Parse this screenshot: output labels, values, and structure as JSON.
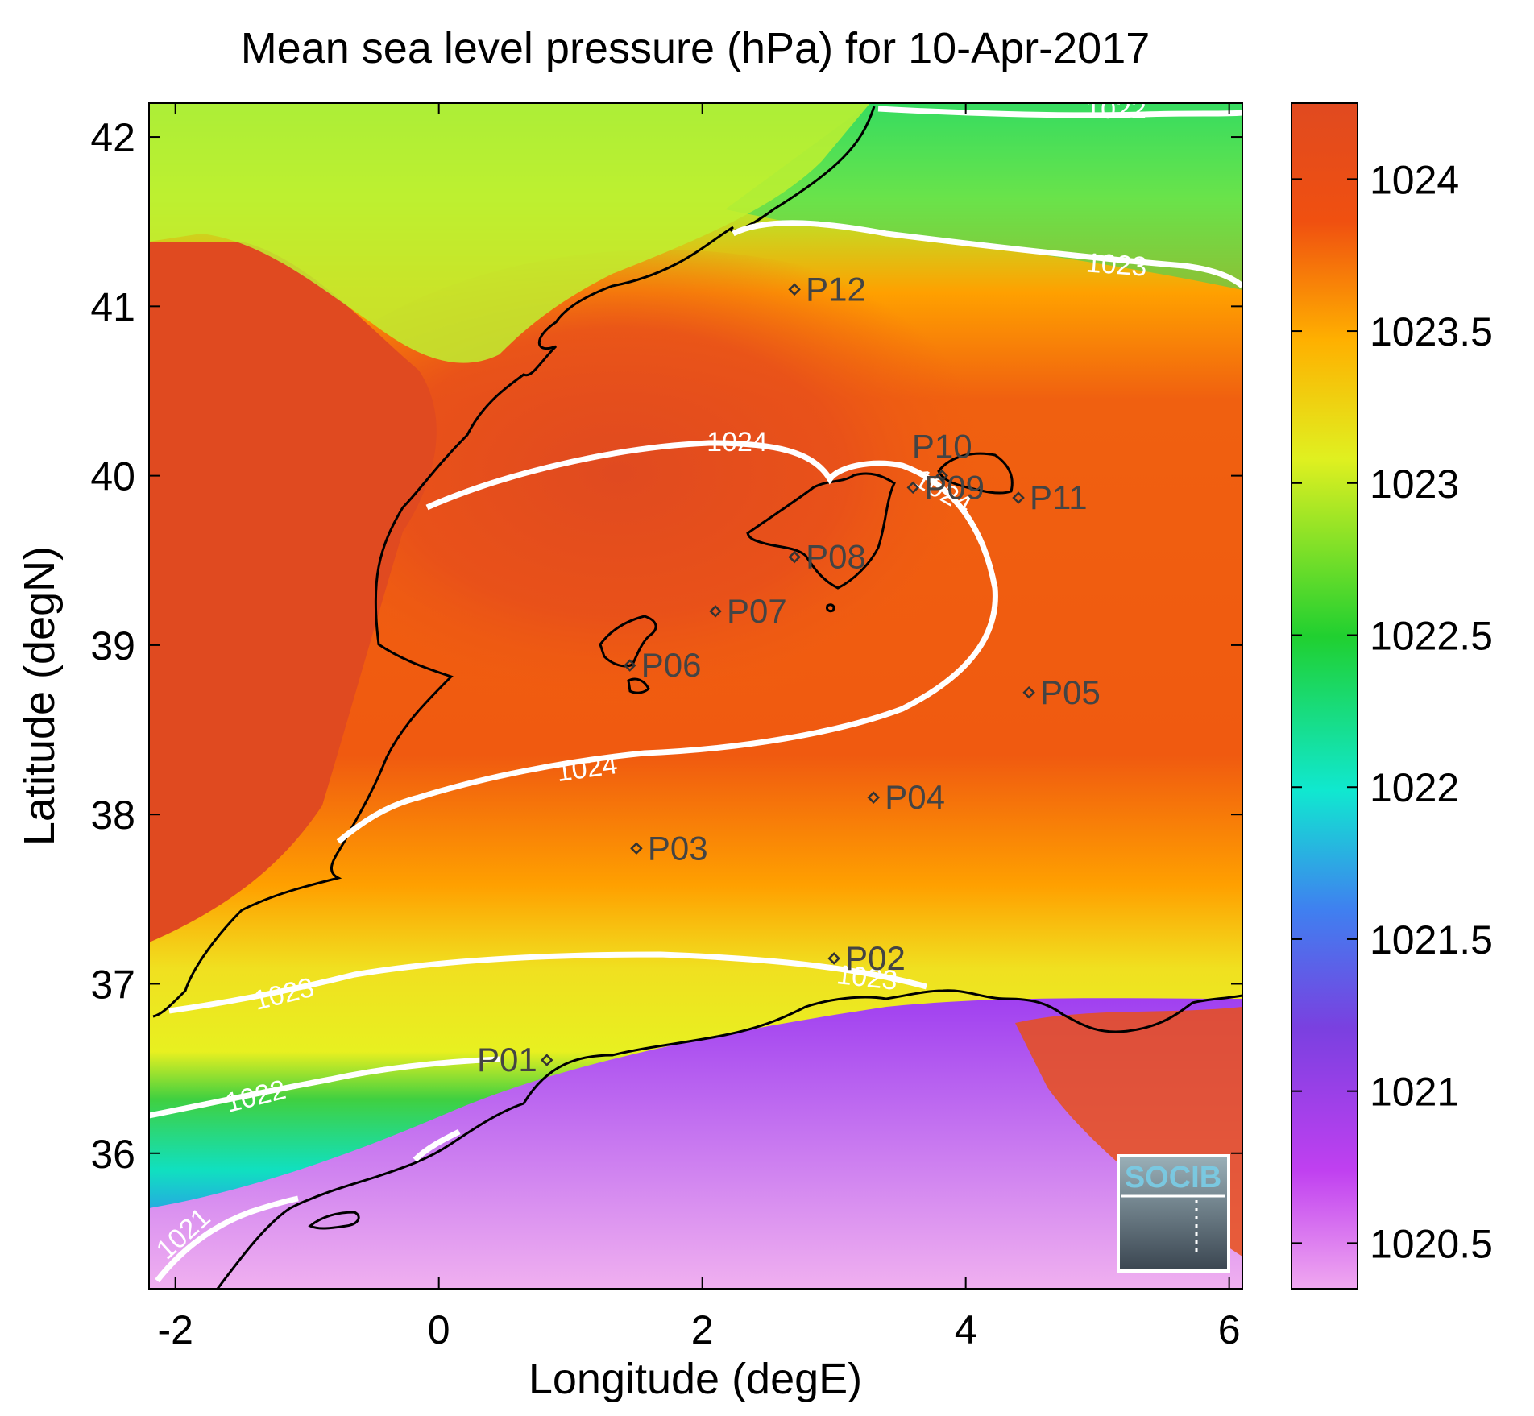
{
  "title": "Mean sea level pressure (hPa) for 10-Apr-2017",
  "axes": {
    "xlabel": "Longitude (degE)",
    "ylabel": "Latitude (degN)",
    "xlim": [
      -2.2,
      6.1
    ],
    "ylim": [
      35.2,
      42.2
    ],
    "xticks": [
      -2,
      0,
      2,
      4,
      6
    ],
    "yticks": [
      36,
      37,
      38,
      39,
      40,
      41,
      42
    ]
  },
  "colorbar": {
    "range": [
      1020.35,
      1024.25
    ],
    "ticks": [
      1024,
      1023.5,
      1023,
      1022.5,
      1022,
      1021.5,
      1021,
      1020.5
    ],
    "colors": [
      "#f0a8f0",
      "#c040f0",
      "#7a40e0",
      "#3f80f0",
      "#10e8d0",
      "#20d030",
      "#e0f020",
      "#ffb000",
      "#f05010",
      "#e04a20"
    ]
  },
  "contours": [
    {
      "label": "1024",
      "level": 1024
    },
    {
      "label": "1023",
      "level": 1023
    },
    {
      "label": "1022",
      "level": 1022
    },
    {
      "label": "1021",
      "level": 1021
    }
  ],
  "stations": [
    {
      "label": "P01",
      "lon": 0.82,
      "lat": 36.55
    },
    {
      "label": "P02",
      "lon": 3.0,
      "lat": 37.15
    },
    {
      "label": "P03",
      "lon": 1.5,
      "lat": 37.8
    },
    {
      "label": "P04",
      "lon": 3.3,
      "lat": 38.1
    },
    {
      "label": "P05",
      "lon": 4.48,
      "lat": 38.72
    },
    {
      "label": "P06",
      "lon": 1.45,
      "lat": 38.88
    },
    {
      "label": "P07",
      "lon": 2.1,
      "lat": 39.2
    },
    {
      "label": "P08",
      "lon": 2.7,
      "lat": 39.52
    },
    {
      "label": "P09",
      "lon": 3.6,
      "lat": 39.93
    },
    {
      "label": "P10",
      "lon": 3.82,
      "lat": 40.0
    },
    {
      "label": "P11",
      "lon": 4.4,
      "lat": 39.87
    },
    {
      "label": "P12",
      "lon": 2.7,
      "lat": 41.1
    }
  ],
  "logo": "SOCIB"
}
